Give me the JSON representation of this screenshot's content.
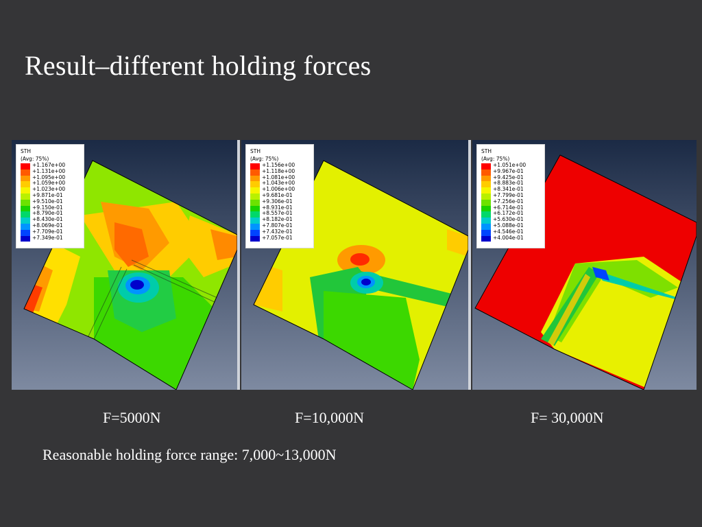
{
  "slide": {
    "title": "Result–different holding forces",
    "note": "Reasonable holding force range: 7,000~13,000N"
  },
  "colors": {
    "background": "#353537",
    "viewport_top": "#1b2a45",
    "viewport_bottom": "#7e8aa1",
    "scale": [
      "#ff0000",
      "#ff5a00",
      "#ff9a00",
      "#ffcc00",
      "#f5f500",
      "#b9f000",
      "#6ce200",
      "#18d200",
      "#00d86a",
      "#00cccc",
      "#0094ff",
      "#0044ff",
      "#0000cc"
    ]
  },
  "panels": [
    {
      "caption": "F=5000N",
      "legend": {
        "variable": "STH",
        "avg": "(Avg: 75%)",
        "values": [
          "+1.167e+00",
          "+1.131e+00",
          "+1.095e+00",
          "+1.059e+00",
          "+1.023e+00",
          "+9.871e-01",
          "+9.510e-01",
          "+9.150e-01",
          "+8.790e-01",
          "+8.430e-01",
          "+8.069e-01",
          "+7.709e-01",
          "+7.349e-01"
        ]
      }
    },
    {
      "caption": "F=10,000N",
      "legend": {
        "variable": "STH",
        "avg": "(Avg: 75%)",
        "values": [
          "+1.156e+00",
          "+1.118e+00",
          "+1.081e+00",
          "+1.043e+00",
          "+1.006e+00",
          "+9.681e-01",
          "+9.306e-01",
          "+8.931e-01",
          "+8.557e-01",
          "+8.182e-01",
          "+7.807e-01",
          "+7.432e-01",
          "+7.057e-01"
        ]
      }
    },
    {
      "caption": "F= 30,000N",
      "legend": {
        "variable": "STH",
        "avg": "(Avg: 75%)",
        "values": [
          "+1.051e+00",
          "+9.967e-01",
          "+9.425e-01",
          "+8.883e-01",
          "+8.341e-01",
          "+7.799e-01",
          "+7.256e-01",
          "+6.714e-01",
          "+6.172e-01",
          "+5.630e-01",
          "+5.088e-01",
          "+4.546e-01",
          "+4.004e-01"
        ]
      }
    }
  ]
}
